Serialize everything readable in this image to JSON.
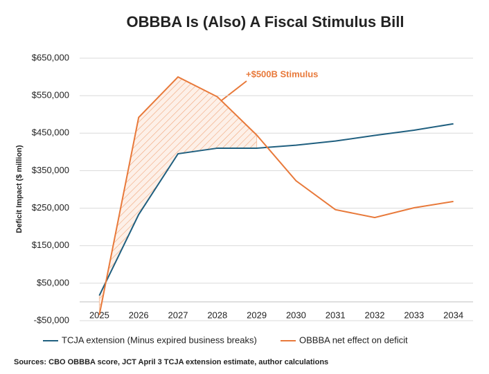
{
  "chart_data": {
    "type": "line",
    "title": "OBBBA Is (Also) A Fiscal Stimulus Bill",
    "y_label": "Deficit Impact ($ million)",
    "annotation": "+$500B Stimulus",
    "source": "Sources: CBO OBBBA score, JCT April 3 TCJA extension estimate, author calculations",
    "categories": [
      "2025",
      "2026",
      "2027",
      "2028",
      "2029",
      "2030",
      "2031",
      "2032",
      "2033",
      "2034"
    ],
    "series": [
      {
        "name": "TCJA extension (Minus expired business breaks)",
        "color": "#1f5f7f",
        "values": [
          17000,
          233000,
          395000,
          410000,
          410000,
          418000,
          429000,
          444000,
          458000,
          475000
        ]
      },
      {
        "name": "OBBBA net effect on deficit",
        "color": "#e8793a",
        "values": [
          -35000,
          492000,
          600000,
          547000,
          445000,
          323000,
          246000,
          225000,
          251000,
          268000
        ]
      }
    ],
    "ylim": [
      -50000,
      650000
    ],
    "yticks": [
      {
        "value": -50000,
        "label": "-$50,000"
      },
      {
        "value": 50000,
        "label": "$50,000"
      },
      {
        "value": 150000,
        "label": "$150,000"
      },
      {
        "value": 250000,
        "label": "$250,000"
      },
      {
        "value": 350000,
        "label": "$350,000"
      },
      {
        "value": 450000,
        "label": "$450,000"
      },
      {
        "value": 550000,
        "label": "$550,000"
      },
      {
        "value": 650000,
        "label": "$650,000"
      }
    ],
    "grid": true
  }
}
